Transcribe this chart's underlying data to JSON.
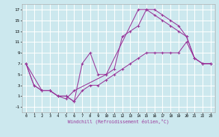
{
  "xlabel": "Windchill (Refroidissement éolien,°C)",
  "bg_color": "#cce8ee",
  "grid_color": "#ffffff",
  "line_color": "#993399",
  "xlim": [
    -0.5,
    23.5
  ],
  "ylim": [
    -2,
    18
  ],
  "xticks": [
    0,
    1,
    2,
    3,
    4,
    5,
    6,
    7,
    8,
    9,
    10,
    11,
    12,
    13,
    14,
    15,
    16,
    17,
    18,
    19,
    20,
    21,
    22,
    23
  ],
  "yticks": [
    -1,
    1,
    3,
    5,
    7,
    9,
    11,
    13,
    15,
    17
  ],
  "line1_x": [
    0,
    1,
    2,
    3,
    4,
    5,
    6,
    7,
    8,
    9,
    10,
    11,
    12,
    13,
    14,
    15,
    16,
    17,
    18,
    19,
    20,
    21,
    22,
    23
  ],
  "line1_y": [
    7,
    3,
    2,
    2,
    1,
    1,
    0,
    2,
    3,
    3,
    4,
    5,
    6,
    7,
    8,
    9,
    9,
    9,
    9,
    9,
    11,
    8,
    7,
    7
  ],
  "line2_x": [
    0,
    1,
    2,
    3,
    4,
    5,
    6,
    7,
    8,
    9,
    10,
    11,
    12,
    13,
    14,
    15,
    16,
    17,
    18,
    19,
    20,
    21,
    22,
    23
  ],
  "line2_y": [
    7,
    3,
    2,
    2,
    1,
    1,
    0,
    7,
    9,
    5,
    5,
    6,
    12,
    13,
    14,
    17,
    17,
    16,
    15,
    14,
    12,
    8,
    7,
    7
  ],
  "line3_x": [
    0,
    2,
    3,
    4,
    5,
    6,
    10,
    14,
    15,
    16,
    17,
    18,
    19,
    20,
    21,
    22,
    23
  ],
  "line3_y": [
    7,
    2,
    2,
    1,
    0.5,
    2,
    5,
    17,
    17,
    16,
    15,
    14,
    13,
    12,
    8,
    7,
    7
  ]
}
